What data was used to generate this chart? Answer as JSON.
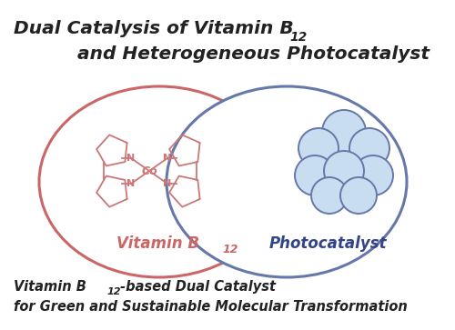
{
  "title_line1": "Dual Catalysis of Vitamin B",
  "title_sub": "12",
  "title_line2": "and Heterogeneous Photocatalyst",
  "bottom_line1a": "Vitamin B",
  "bottom_sub": "12",
  "bottom_line1b": "-based Dual Catalyst",
  "bottom_line2": "for Green and Sustainable Molecular Transformation",
  "left_label": "Vitamin B",
  "left_label_sub": "12",
  "right_label": "Photocatalyst",
  "circle_left_color": "#cc6666",
  "circle_right_color": "#6677aa",
  "left_label_color": "#cc6666",
  "right_label_color": "#334488",
  "title_color": "#222222",
  "bottom_text_color": "#222222",
  "bg_color": "#ffffff",
  "circle_lw": 2.2,
  "mol_color": "#cc7777",
  "particle_fill": "#c8ddf0",
  "particle_edge": "#6677aa"
}
